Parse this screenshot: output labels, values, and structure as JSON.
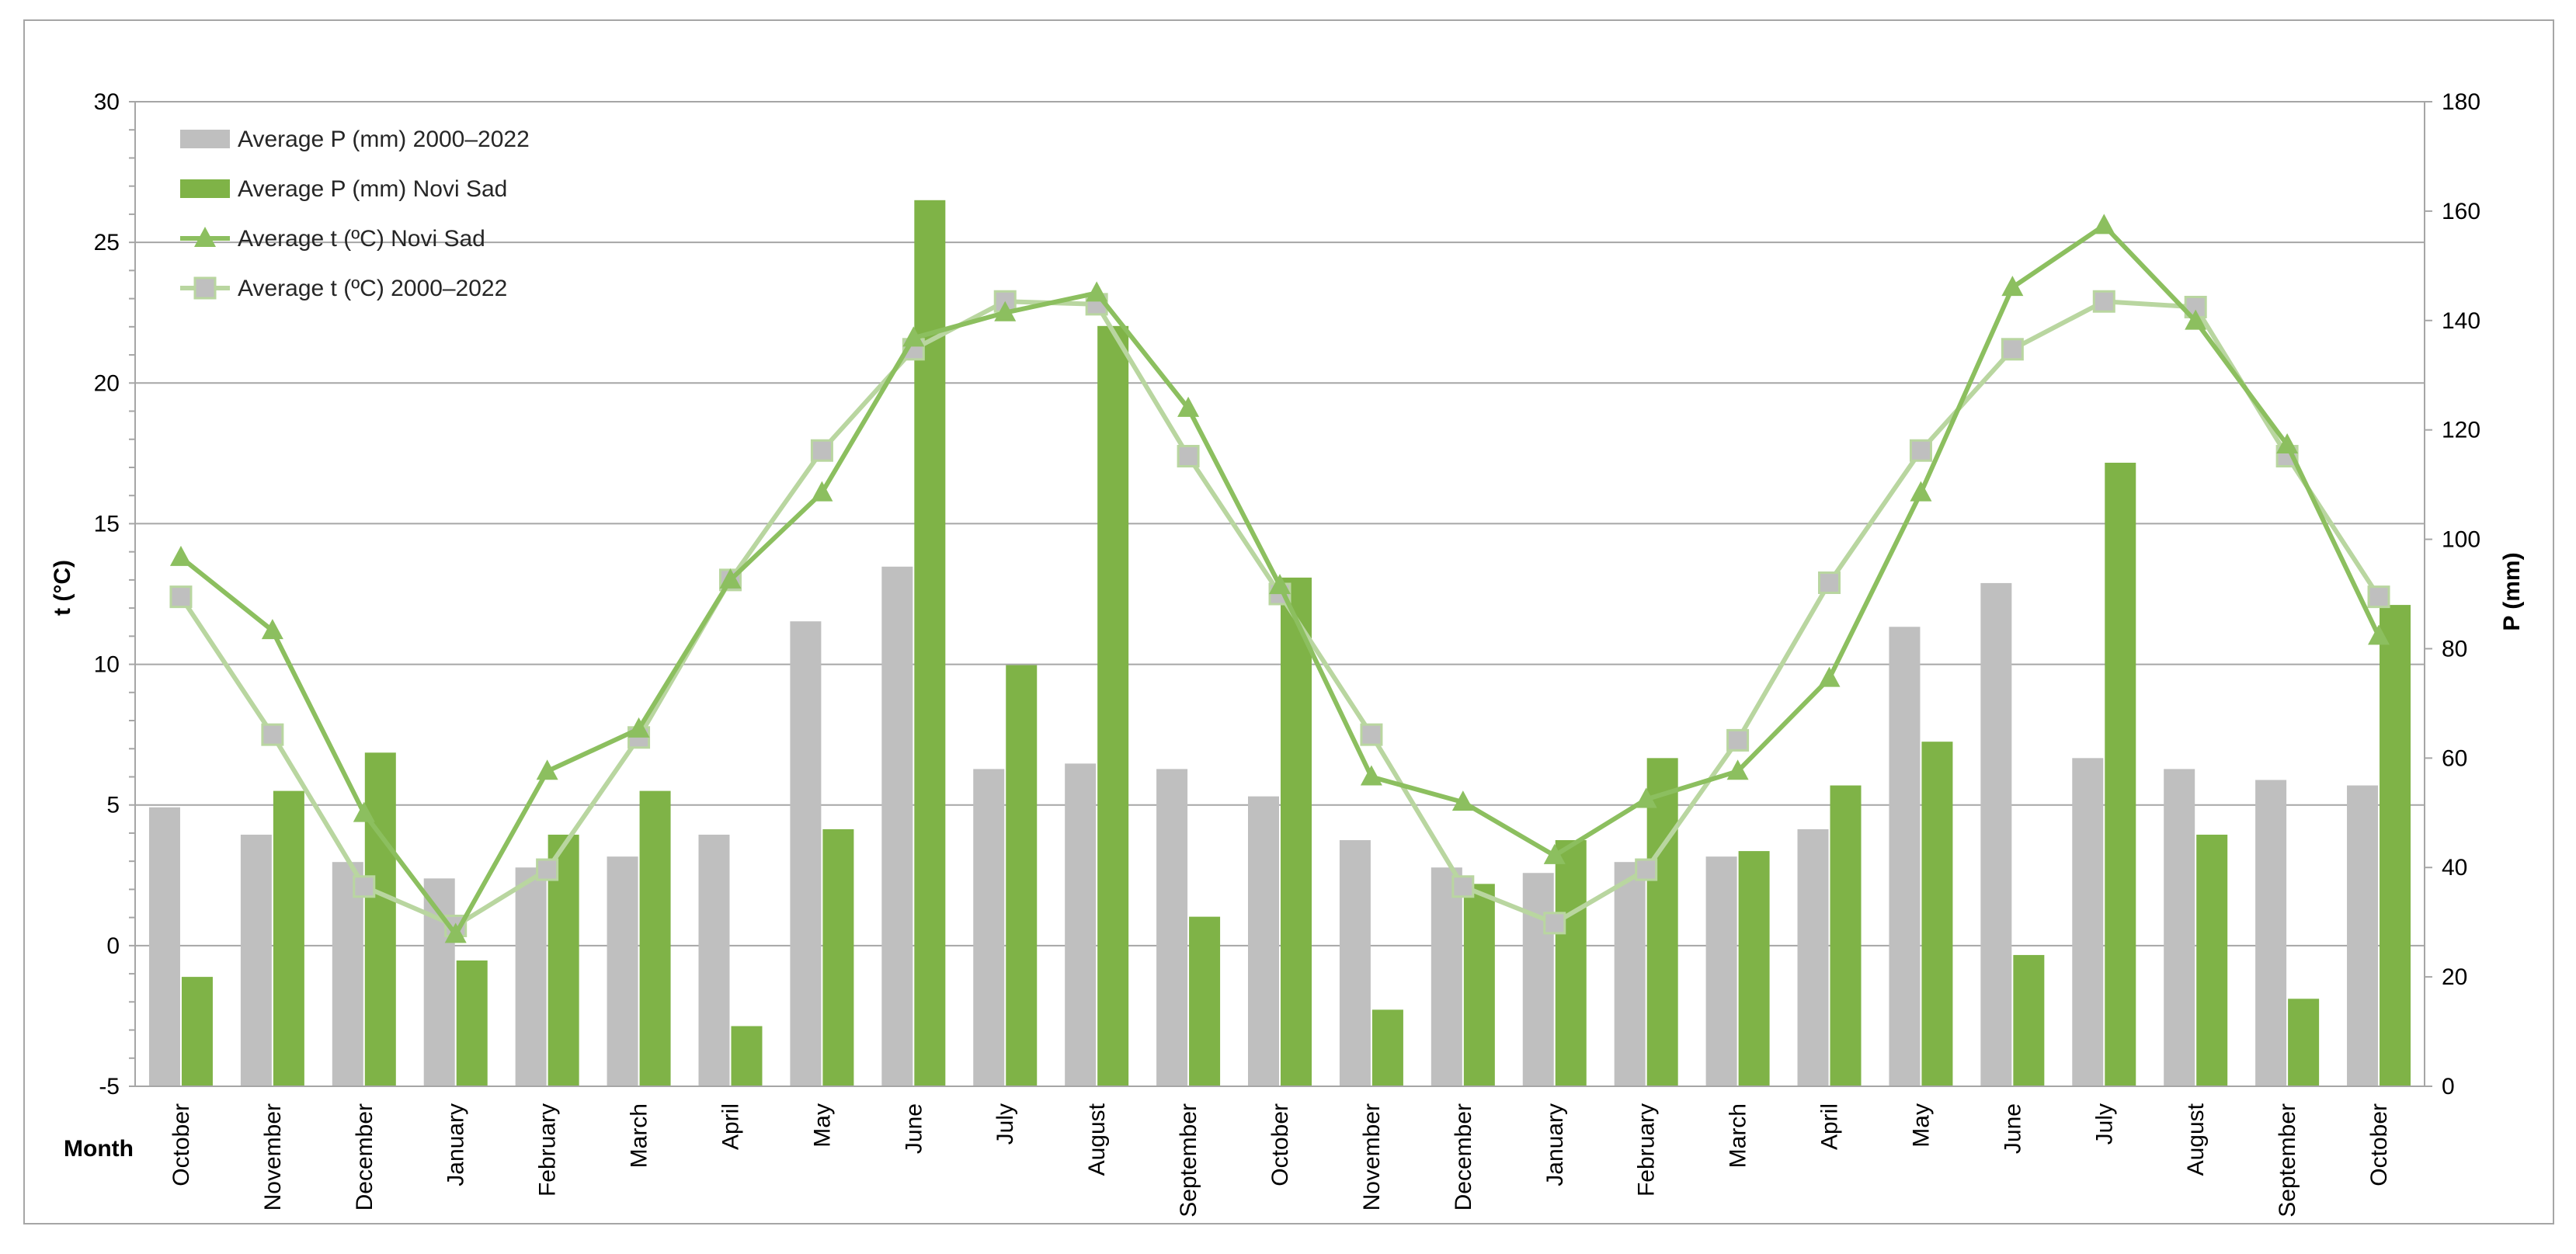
{
  "chart_data": {
    "type": "bar",
    "title": "",
    "xlabel": "Month",
    "ylabel_left": "t (°C)",
    "ylabel_right": "P (mm)",
    "ylim_left": [
      -5,
      30
    ],
    "ylim_right": [
      0,
      180
    ],
    "yticks_left": [
      -5,
      0,
      5,
      10,
      15,
      20,
      25,
      30
    ],
    "yticks_right": [
      0,
      20,
      40,
      60,
      80,
      100,
      120,
      140,
      160,
      180
    ],
    "grid": true,
    "legend_position": "top-left",
    "categories": [
      "October",
      "November",
      "December",
      "January",
      "February",
      "March",
      "April",
      "May",
      "June",
      "July",
      "August",
      "September",
      "October",
      "November",
      "December",
      "January",
      "February",
      "March",
      "April",
      "May",
      "June",
      "July",
      "August",
      "September",
      "October"
    ],
    "series": [
      {
        "name": "Average P (mm) 2000–2022",
        "type": "bar",
        "axis": "right",
        "color": "#bfbfbf",
        "values": [
          51,
          46,
          41,
          38,
          40,
          42,
          46,
          85,
          95,
          58,
          59,
          58,
          53,
          45,
          40,
          39,
          41,
          42,
          47,
          84,
          92,
          60,
          58,
          56,
          55
        ]
      },
      {
        "name": "Average P (mm) Novi Sad",
        "type": "bar",
        "axis": "right",
        "color": "#7fb347",
        "values": [
          20,
          54,
          61,
          23,
          46,
          54,
          11,
          47,
          162,
          77,
          139,
          31,
          93,
          14,
          37,
          45,
          60,
          43,
          55,
          63,
          24,
          114,
          46,
          16,
          88
        ]
      },
      {
        "name": "Average t (ºC) Novi Sad",
        "type": "line",
        "axis": "left",
        "color": "#8cbf5f",
        "marker": "triangle",
        "values": [
          13.8,
          11.2,
          4.7,
          0.4,
          6.2,
          7.7,
          13.0,
          16.1,
          21.6,
          22.5,
          23.2,
          19.1,
          12.8,
          6.0,
          5.1,
          3.2,
          5.2,
          6.2,
          9.5,
          16.1,
          23.4,
          25.6,
          22.2,
          17.8,
          11.0
        ]
      },
      {
        "name": "Average t (ºC) 2000–2022",
        "type": "line",
        "axis": "left",
        "color": "#b9d6a0",
        "marker": "square",
        "values": [
          12.4,
          7.5,
          2.1,
          0.7,
          2.7,
          7.4,
          13.0,
          17.6,
          21.2,
          22.9,
          22.8,
          17.4,
          12.5,
          7.5,
          2.1,
          0.8,
          2.7,
          7.3,
          12.9,
          17.6,
          21.2,
          22.9,
          22.7,
          17.4,
          12.4
        ]
      }
    ]
  }
}
